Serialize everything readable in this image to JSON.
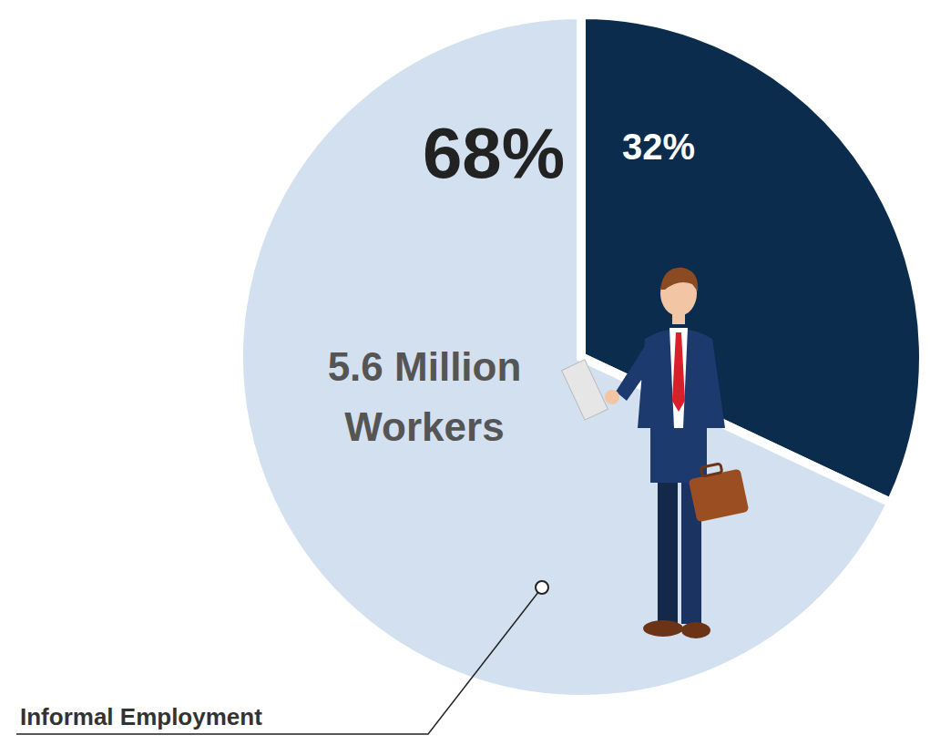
{
  "chart_data": {
    "type": "pie",
    "categories": [
      null,
      "Informal Employment"
    ],
    "values": [
      32,
      68
    ],
    "value_labels": [
      "32%",
      "68%"
    ],
    "colors": [
      "#0b2c4d",
      "#d3e0f0"
    ],
    "data_labels": true,
    "annotation": "5.6 Million Workers"
  }
}
